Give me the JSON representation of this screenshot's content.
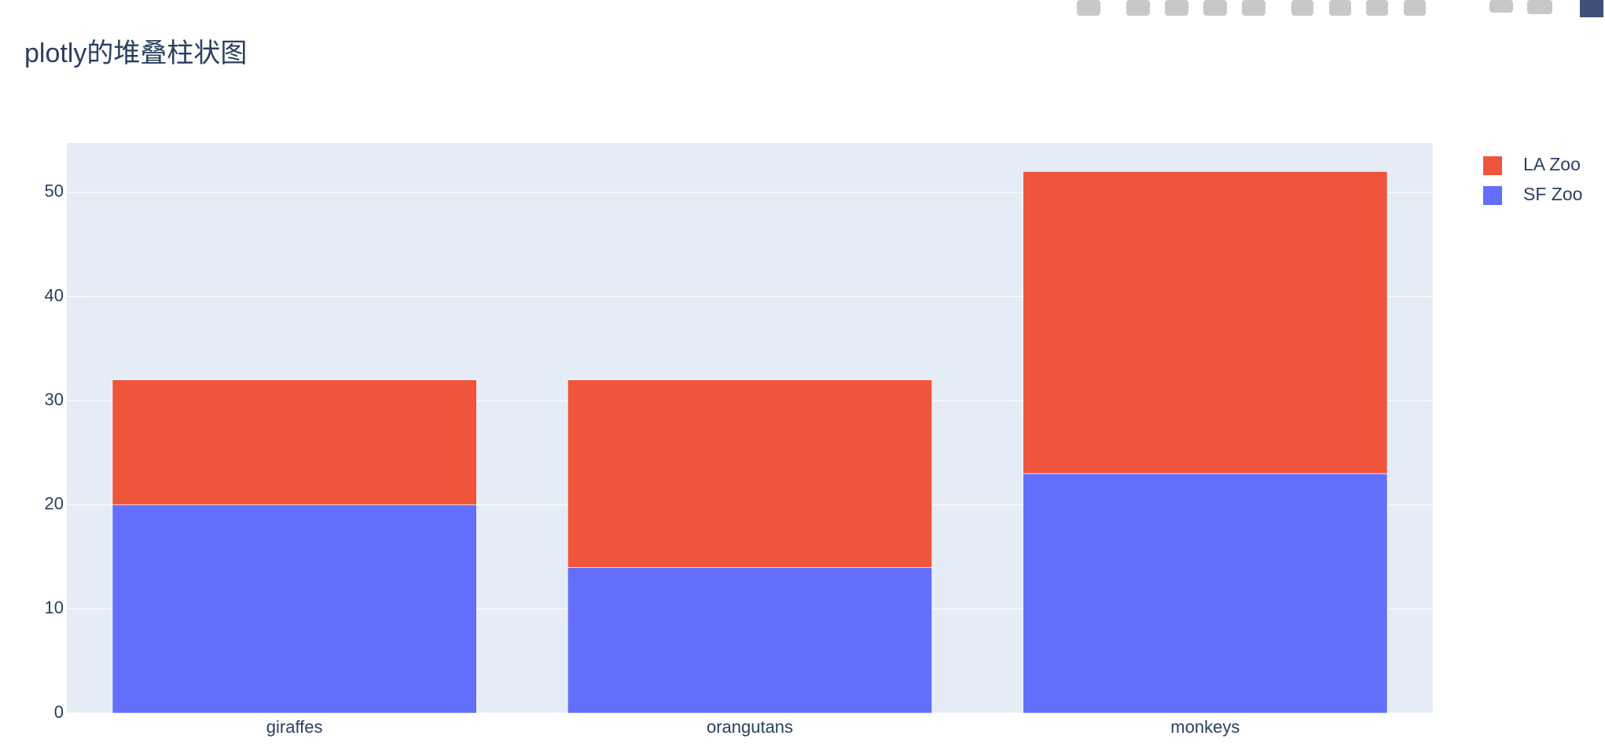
{
  "chart_data": {
    "type": "bar",
    "barmode": "stack",
    "title": "plotly的堆叠柱状图",
    "categories": [
      "giraffes",
      "orangutans",
      "monkeys"
    ],
    "series": [
      {
        "name": "SF Zoo",
        "color": "#636efa",
        "values": [
          20,
          14,
          23
        ]
      },
      {
        "name": "LA Zoo",
        "color": "#ef553b",
        "values": [
          12,
          18,
          29
        ]
      }
    ],
    "ylim": [
      0,
      54.74
    ],
    "yticks": [
      0,
      10,
      20,
      30,
      40,
      50
    ],
    "grid": true,
    "legend": "right"
  }
}
